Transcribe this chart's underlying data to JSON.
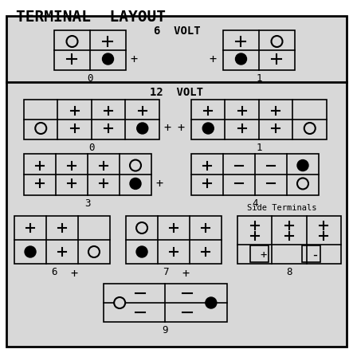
{
  "title": "TERMINAL  LAYOUT",
  "title_fontsize": 14,
  "bg_color": "#d8d8d8",
  "outer_bg": "#ffffff",
  "border_color": "#000000",
  "section_6v_label": "6  VOLT",
  "section_12v_label": "12  VOLT",
  "side_terminals_label": "Side Terminals",
  "font_family": "monospace"
}
